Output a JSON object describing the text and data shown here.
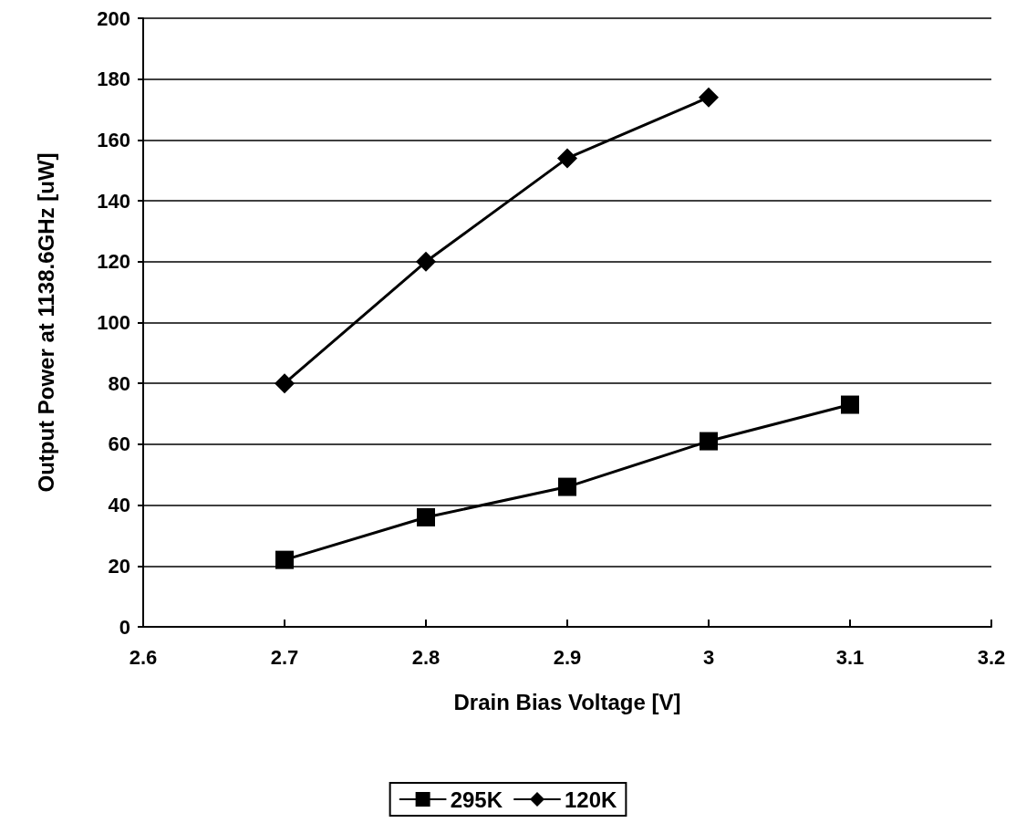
{
  "chart_data": {
    "type": "line",
    "xlabel": "Drain Bias Voltage [V]",
    "ylabel": "Output Power at 1138.6GHz [uW]",
    "xlim": [
      2.6,
      3.2
    ],
    "xticks": [
      2.6,
      2.7,
      2.8,
      2.9,
      3,
      3.1,
      3.2
    ],
    "ylim": [
      0,
      200
    ],
    "yticks": [
      0,
      20,
      40,
      60,
      80,
      100,
      120,
      140,
      160,
      180,
      200
    ],
    "grid": "y",
    "legend": "bottom",
    "line_style": "solid",
    "series": [
      {
        "name": "295K",
        "color": "#000000",
        "marker": "square",
        "x": [
          2.7,
          2.8,
          2.9,
          3,
          3.1
        ],
        "values": [
          22,
          36,
          46,
          61,
          73
        ]
      },
      {
        "name": "120K",
        "color": "#000000",
        "marker": "diamond",
        "x": [
          2.7,
          2.8,
          2.9,
          3
        ],
        "values": [
          80,
          120,
          154,
          174
        ]
      }
    ]
  }
}
